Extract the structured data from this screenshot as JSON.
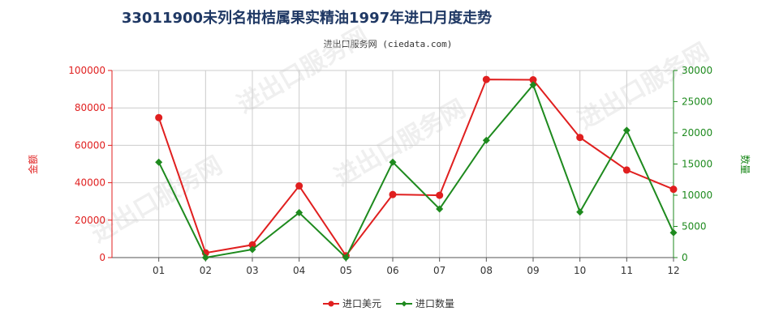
{
  "chart_data": {
    "type": "line",
    "title": "33011900未列名柑桔属果实精油1997年进口月度走势",
    "subtitle": "进出口服务网 (ciedata.com)",
    "categories": [
      "01",
      "02",
      "03",
      "04",
      "05",
      "06",
      "07",
      "08",
      "09",
      "10",
      "11",
      "12"
    ],
    "y_left": {
      "label": "金额",
      "range": [
        0,
        100000
      ],
      "ticks": [
        0,
        20000,
        40000,
        60000,
        80000,
        100000
      ]
    },
    "y_right": {
      "label": "数量",
      "range": [
        0,
        30000
      ],
      "ticks": [
        0,
        5000,
        10000,
        15000,
        20000,
        25000,
        30000
      ]
    },
    "series": [
      {
        "name": "进口美元",
        "axis": "left",
        "color": "#e01f1f",
        "values": [
          74800,
          2500,
          6800,
          38300,
          1000,
          33700,
          33300,
          95200,
          95000,
          64200,
          46800,
          36500
        ]
      },
      {
        "name": "进口数量",
        "axis": "right",
        "color": "#1e8a1e",
        "values": [
          15300,
          0,
          1300,
          7200,
          0,
          15300,
          7800,
          18800,
          27700,
          7300,
          20400,
          4000
        ]
      }
    ],
    "grid": true,
    "legend_position": "bottom-center"
  },
  "colors": {
    "left_axis": "#e01f1f",
    "right_axis": "#1e8a1e",
    "grid": "#cccccc"
  },
  "watermark": "进出口服务网"
}
